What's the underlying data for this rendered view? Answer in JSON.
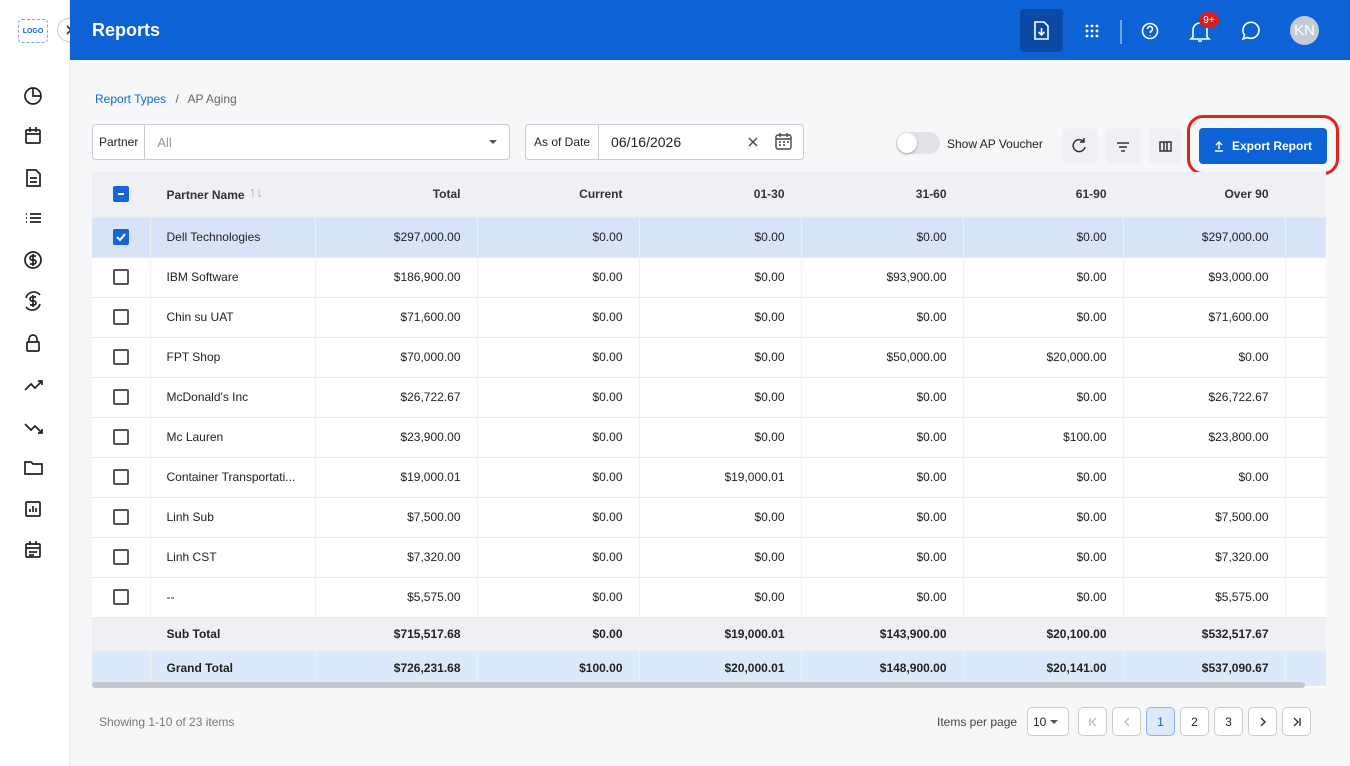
{
  "header": {
    "logo": "LOGO",
    "title": "Reports",
    "badge": "9+",
    "avatar": "KN"
  },
  "breadcrumb": {
    "items": [
      "Report Types",
      "AP Aging"
    ],
    "separator": "/"
  },
  "filters": {
    "partner_label": "Partner",
    "partner_value": "All",
    "date_label": "As of Date",
    "date_value": "06/16/2026",
    "toggle_label": "Show AP Voucher",
    "export": "Export Report"
  },
  "table": {
    "columns": [
      "Partner Name",
      "Total",
      "Current",
      "01-30",
      "31-60",
      "61-90",
      "Over 90"
    ],
    "rows": [
      [
        "Dell Technologies",
        "$297,000.00",
        "$0.00",
        "$0.00",
        "$0.00",
        "$0.00",
        "$297,000.00"
      ],
      [
        "IBM Software",
        "$186,900.00",
        "$0.00",
        "$0.00",
        "$93,900.00",
        "$0.00",
        "$93,000.00"
      ],
      [
        "Chin su UAT",
        "$71,600.00",
        "$0.00",
        "$0.00",
        "$0.00",
        "$0.00",
        "$71,600.00"
      ],
      [
        "FPT Shop",
        "$70,000.00",
        "$0.00",
        "$0.00",
        "$50,000.00",
        "$20,000.00",
        "$0.00"
      ],
      [
        "McDonald's Inc",
        "$26,722.67",
        "$0.00",
        "$0.00",
        "$0.00",
        "$0.00",
        "$26,722.67"
      ],
      [
        "Mc Lauren",
        "$23,900.00",
        "$0.00",
        "$0.00",
        "$0.00",
        "$100.00",
        "$23,800.00"
      ],
      [
        "Container Transportati...",
        "$19,000.01",
        "$0.00",
        "$19,000.01",
        "$0.00",
        "$0.00",
        "$0.00"
      ],
      [
        "Linh Sub",
        "$7,500.00",
        "$0.00",
        "$0.00",
        "$0.00",
        "$0.00",
        "$7,500.00"
      ],
      [
        "Linh CST",
        "$7,320.00",
        "$0.00",
        "$0.00",
        "$0.00",
        "$0.00",
        "$7,320.00"
      ],
      [
        "--",
        "$5,575.00",
        "$0.00",
        "$0.00",
        "$0.00",
        "$0.00",
        "$5,575.00"
      ]
    ],
    "selected_row": 0,
    "subtotal": [
      "Sub Total",
      "$715,517.68",
      "$0.00",
      "$19,000.01",
      "$143,900.00",
      "$20,100.00",
      "$532,517.67"
    ],
    "grandtotal": [
      "Grand Total",
      "$726,231.68",
      "$100.00",
      "$20,000.01",
      "$148,900.00",
      "$20,141.00",
      "$537,090.67"
    ]
  },
  "footer": {
    "showing": "Showing 1-10 of 23 items",
    "per_page_label": "Items per page",
    "per_page": "10",
    "pages": [
      "1",
      "2",
      "3"
    ],
    "current_page": 0
  }
}
